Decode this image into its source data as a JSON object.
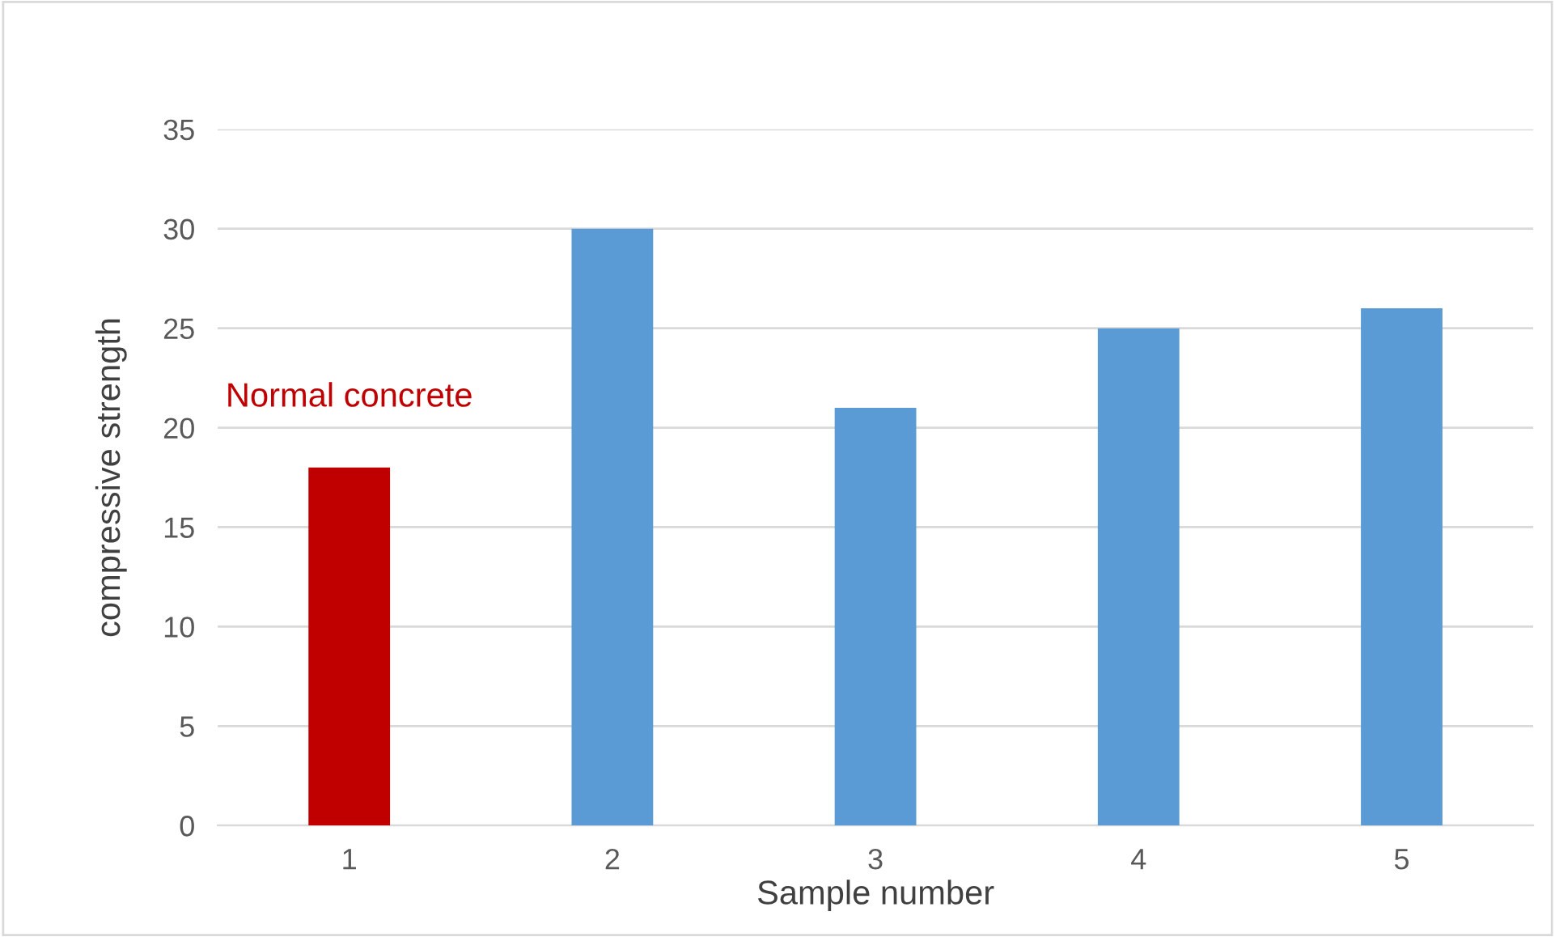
{
  "chart_data": {
    "type": "bar",
    "xlabel": "Sample number",
    "ylabel": "compressive strength",
    "categories": [
      "1",
      "2",
      "3",
      "4",
      "5"
    ],
    "values": [
      18,
      30,
      21,
      25,
      26
    ],
    "colors": [
      "#c00000",
      "#5b9bd5",
      "#5b9bd5",
      "#5b9bd5",
      "#5b9bd5"
    ],
    "ylim": [
      0,
      35
    ],
    "yticks": [
      0,
      5,
      10,
      15,
      20,
      25,
      30,
      35
    ],
    "grid": "y",
    "annotations": [
      {
        "text": "Normal concrete",
        "x": "1",
        "y": 18
      }
    ]
  }
}
